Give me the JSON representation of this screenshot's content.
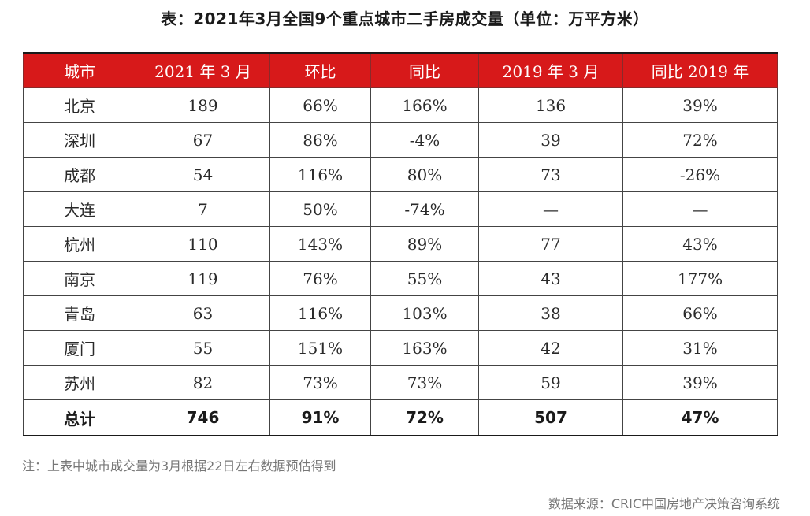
{
  "title": "表：2021年3月全国9个重点城市二手房成交量（单位：万平方米）",
  "table": {
    "headers": [
      "城市",
      "2021 年 3 月",
      "环比",
      "同比",
      "2019 年 3 月",
      "同比 2019 年"
    ],
    "rows": [
      [
        "北京",
        "189",
        "66%",
        "166%",
        "136",
        "39%"
      ],
      [
        "深圳",
        "67",
        "86%",
        "-4%",
        "39",
        "72%"
      ],
      [
        "成都",
        "54",
        "116%",
        "80%",
        "73",
        "-26%"
      ],
      [
        "大连",
        "7",
        "50%",
        "-74%",
        "—",
        "—"
      ],
      [
        "杭州",
        "110",
        "143%",
        "89%",
        "77",
        "43%"
      ],
      [
        "南京",
        "119",
        "76%",
        "55%",
        "43",
        "177%"
      ],
      [
        "青岛",
        "63",
        "116%",
        "103%",
        "38",
        "66%"
      ],
      [
        "厦门",
        "55",
        "151%",
        "163%",
        "42",
        "31%"
      ],
      [
        "苏州",
        "82",
        "73%",
        "73%",
        "59",
        "39%"
      ]
    ],
    "total": [
      "总计",
      "746",
      "91%",
      "72%",
      "507",
      "47%"
    ]
  },
  "note": "注：上表中城市成交量为3月根据22日左右数据预估得到",
  "source": "数据来源：CRIC中国房地产决策咨询系统",
  "colors": {
    "header_bg": "#d7191a",
    "header_text": "#ffffff",
    "note_text": "#777777"
  }
}
